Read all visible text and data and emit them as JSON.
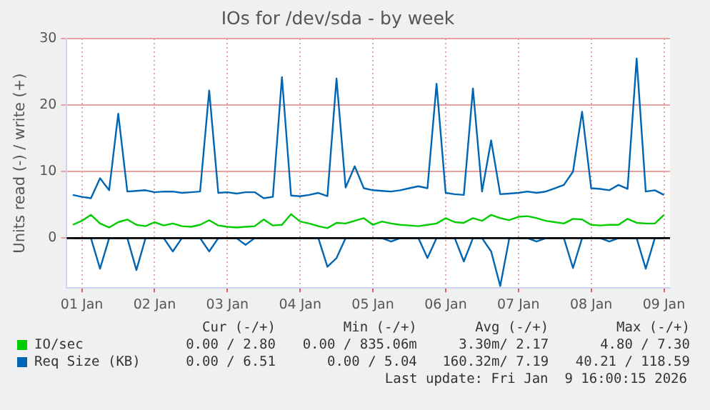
{
  "chart_data": {
    "type": "line",
    "title": "IOs for /dev/sda - by week",
    "ylabel": "Units read (-) / write (+)",
    "x": [
      "2025-12-31T21:00",
      "2026-01-01T00:00",
      "2026-01-01T03:00",
      "2026-01-01T06:00",
      "2026-01-01T09:00",
      "2026-01-01T12:00",
      "2026-01-01T15:00",
      "2026-01-01T18:00",
      "2026-01-01T21:00",
      "2026-01-02T00:00",
      "2026-01-02T03:00",
      "2026-01-02T06:00",
      "2026-01-02T09:00",
      "2026-01-02T12:00",
      "2026-01-02T15:00",
      "2026-01-02T18:00",
      "2026-01-02T21:00",
      "2026-01-03T00:00",
      "2026-01-03T03:00",
      "2026-01-03T06:00",
      "2026-01-03T09:00",
      "2026-01-03T12:00",
      "2026-01-03T15:00",
      "2026-01-03T18:00",
      "2026-01-03T21:00",
      "2026-01-04T00:00",
      "2026-01-04T03:00",
      "2026-01-04T06:00",
      "2026-01-04T09:00",
      "2026-01-04T12:00",
      "2026-01-04T15:00",
      "2026-01-04T18:00",
      "2026-01-04T21:00",
      "2026-01-05T00:00",
      "2026-01-05T03:00",
      "2026-01-05T06:00",
      "2026-01-05T09:00",
      "2026-01-05T12:00",
      "2026-01-05T15:00",
      "2026-01-05T18:00",
      "2026-01-05T21:00",
      "2026-01-06T00:00",
      "2026-01-06T03:00",
      "2026-01-06T06:00",
      "2026-01-06T09:00",
      "2026-01-06T12:00",
      "2026-01-06T15:00",
      "2026-01-06T18:00",
      "2026-01-06T21:00",
      "2026-01-07T00:00",
      "2026-01-07T03:00",
      "2026-01-07T06:00",
      "2026-01-07T09:00",
      "2026-01-07T12:00",
      "2026-01-07T15:00",
      "2026-01-07T18:00",
      "2026-01-07T21:00",
      "2026-01-08T00:00",
      "2026-01-08T03:00",
      "2026-01-08T06:00",
      "2026-01-08T09:00",
      "2026-01-08T12:00",
      "2026-01-08T15:00",
      "2026-01-08T18:00",
      "2026-01-08T21:00",
      "2026-01-09T00:00"
    ],
    "series": [
      {
        "name": "IO/sec",
        "color": "#00cc00",
        "values": [
          2.0,
          2.6,
          3.5,
          2.2,
          1.6,
          2.4,
          2.8,
          2.0,
          1.8,
          2.4,
          1.9,
          2.2,
          1.8,
          1.7,
          2.0,
          2.7,
          1.9,
          1.7,
          1.6,
          1.7,
          1.8,
          2.8,
          1.9,
          2.0,
          3.6,
          2.5,
          2.2,
          1.8,
          1.5,
          2.3,
          2.2,
          2.6,
          3.0,
          2.0,
          2.5,
          2.2,
          2.0,
          1.9,
          1.8,
          2.0,
          2.2,
          3.0,
          2.4,
          2.3,
          3.0,
          2.6,
          3.5,
          3.0,
          2.7,
          3.2,
          3.3,
          3.0,
          2.6,
          2.4,
          2.2,
          2.9,
          2.8,
          2.0,
          1.9,
          2.0,
          2.0,
          2.9,
          2.3,
          2.2,
          2.2,
          3.5
        ]
      },
      {
        "name": "Req Size (KB)",
        "color": "#0066b3",
        "values": [
          6.5,
          6.2,
          6.0,
          9.0,
          7.2,
          18.7,
          7.0,
          7.1,
          7.2,
          6.9,
          7.0,
          7.0,
          6.8,
          6.9,
          7.0,
          22.2,
          6.8,
          6.9,
          6.7,
          6.9,
          6.9,
          6.0,
          6.2,
          24.2,
          6.4,
          6.3,
          6.5,
          6.8,
          6.3,
          24.0,
          7.6,
          10.8,
          7.5,
          7.2,
          7.1,
          7.0,
          7.2,
          7.5,
          7.8,
          7.5,
          23.2,
          6.8,
          6.6,
          6.5,
          22.5,
          7.0,
          14.7,
          6.6,
          6.7,
          6.8,
          7.0,
          6.8,
          7.0,
          7.5,
          8.0,
          10.0,
          19.0,
          7.5,
          7.4,
          7.2,
          8.0,
          7.4,
          27.0,
          7.0,
          7.2,
          6.5
        ]
      },
      {
        "color": "#0066b3",
        "values": [
          0,
          0,
          0,
          -4.6,
          0,
          0,
          0,
          -4.8,
          0,
          0,
          0,
          -2,
          0,
          0,
          0,
          -2,
          0,
          0,
          0,
          -1,
          0,
          0,
          0,
          0,
          0,
          0,
          0,
          0,
          -4.3,
          -3,
          0,
          0,
          0,
          0,
          0,
          -0.5,
          0,
          0,
          0,
          -3,
          0,
          0,
          0,
          -3.5,
          0,
          0,
          -2,
          -7.2,
          0,
          0,
          0,
          -0.5,
          0,
          0,
          0,
          -4.5,
          0,
          0,
          0,
          -0.5,
          0,
          0,
          0,
          -4.6,
          0,
          0
        ]
      }
    ],
    "xlim": [
      "2025-12-31T19:00",
      "2026-01-09T02:00"
    ],
    "xticks": [
      {
        "value": "2026-01-01T00:00",
        "label": "01 Jan"
      },
      {
        "value": "2026-01-02T00:00",
        "label": "02 Jan"
      },
      {
        "value": "2026-01-03T00:00",
        "label": "03 Jan"
      },
      {
        "value": "2026-01-04T00:00",
        "label": "04 Jan"
      },
      {
        "value": "2026-01-05T00:00",
        "label": "05 Jan"
      },
      {
        "value": "2026-01-06T00:00",
        "label": "06 Jan"
      },
      {
        "value": "2026-01-07T00:00",
        "label": "07 Jan"
      },
      {
        "value": "2026-01-08T00:00",
        "label": "08 Jan"
      },
      {
        "value": "2026-01-09T00:00",
        "label": "09 Jan"
      }
    ],
    "ylim": [
      -7.5,
      30
    ],
    "yticks": [
      0,
      10,
      20,
      30
    ],
    "ref_lines": [
      {
        "axis": "y",
        "value": 0,
        "color": "#000000"
      }
    ],
    "grid": true,
    "legend": "bottom",
    "annotations": [
      "Cur (-/+)",
      "Min (-/+)",
      "Avg (-/+)",
      "Max (-/+)",
      "0.00 / 2.80",
      "0.00 / 835.06m",
      "3.30m/ 2.17",
      "4.80 / 7.30",
      "0.00 / 6.51",
      "0.00 / 5.04",
      "160.32m/ 7.19",
      "40.21 / 118.59",
      "Last update: Fri Jan  9 16:00:15 2026"
    ]
  }
}
